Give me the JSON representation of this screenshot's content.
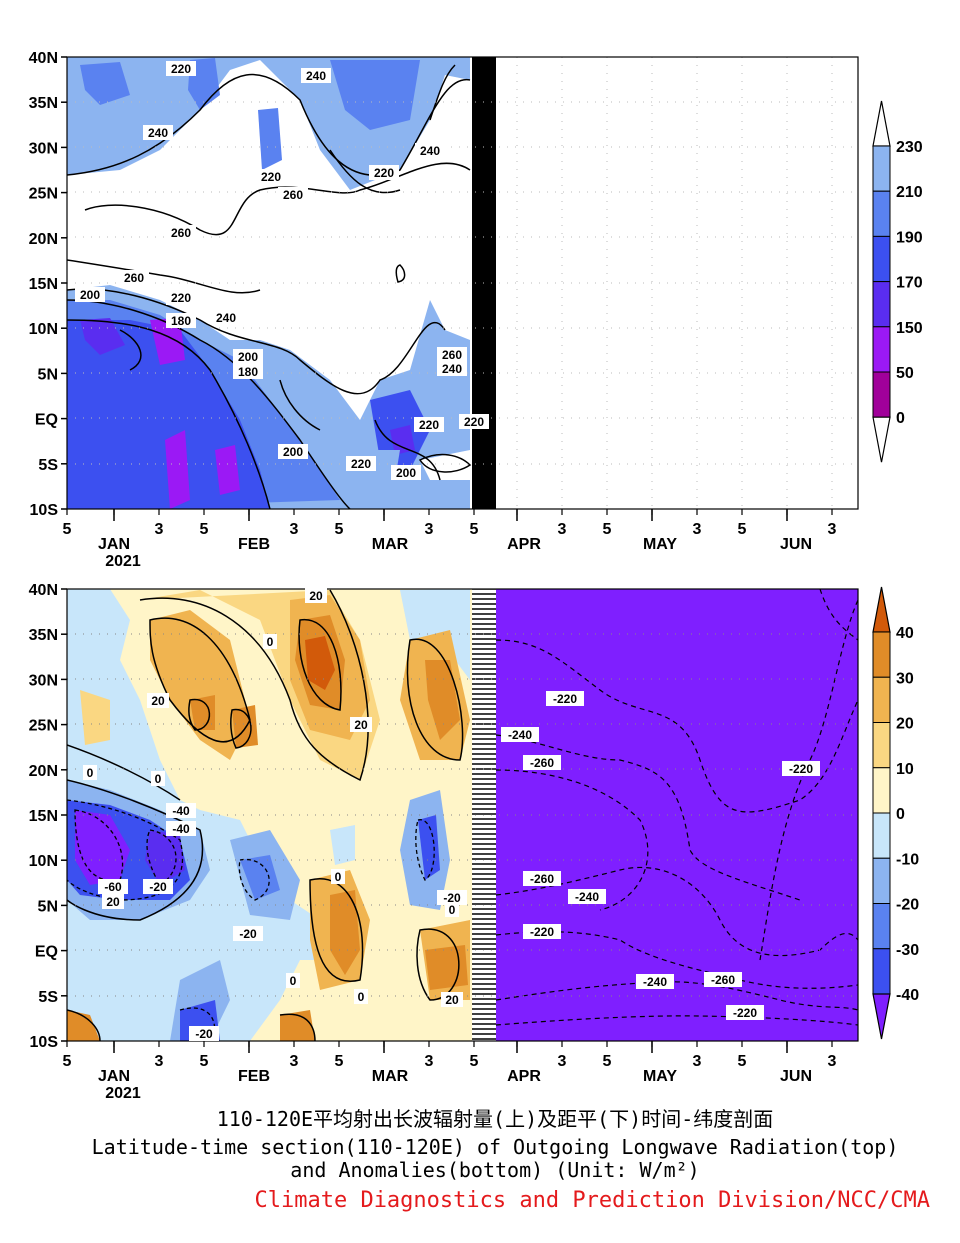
{
  "caption": {
    "line1": "110-120E平均射出长波辐射量(上)及距平(下)时间-纬度剖面",
    "line2": "Latitude-time section(110-120E) of Outgoing Longwave Radiation(top)",
    "line3": "and Anomalies(bottom) (Unit: W/m²)",
    "credit": "Climate Diagnostics and Prediction Division/NCC/CMA"
  },
  "chart_data": [
    {
      "type": "heatmap",
      "title": "",
      "xlabel": "",
      "ylabel": "",
      "y_ticks": [
        "40N",
        "35N",
        "30N",
        "25N",
        "20N",
        "15N",
        "10N",
        "5N",
        "EQ",
        "5S",
        "10S"
      ],
      "x_day_ticks": [
        "5",
        "3",
        "5",
        "3",
        "5",
        "3",
        "5",
        "3",
        "5",
        "3",
        "5",
        "3",
        "5",
        "3"
      ],
      "x_month_ticks": [
        "JAN",
        "FEB",
        "MAR",
        "APR",
        "MAY",
        "JUN"
      ],
      "x_year_label": "2021",
      "data_end_month_fraction": 0.29,
      "colorbar": {
        "levels": [
          "0",
          "50",
          "150",
          "170",
          "190",
          "210",
          "230"
        ],
        "colors": [
          "#6b005f",
          "#a0009a",
          "#9b19f5",
          "#5a2df0",
          "#3c50f0",
          "#5a82f0",
          "#8cb4f0",
          "#c8dcf8",
          "#ffffff"
        ]
      },
      "contour_labels": [
        "220",
        "240",
        "240",
        "220",
        "240",
        "220",
        "260",
        "260",
        "260",
        "200",
        "220",
        "180",
        "240",
        "200",
        "180",
        "200",
        "220",
        "200",
        "220",
        "220",
        "260",
        "240"
      ],
      "grid": true
    },
    {
      "type": "heatmap",
      "title": "",
      "xlabel": "",
      "ylabel": "",
      "y_ticks": [
        "40N",
        "35N",
        "30N",
        "25N",
        "20N",
        "15N",
        "10N",
        "5N",
        "EQ",
        "5S",
        "10S"
      ],
      "x_day_ticks": [
        "5",
        "3",
        "5",
        "3",
        "5",
        "3",
        "5",
        "3",
        "5",
        "3",
        "5",
        "3",
        "5",
        "3"
      ],
      "x_month_ticks": [
        "JAN",
        "FEB",
        "MAR",
        "APR",
        "MAY",
        "JUN"
      ],
      "x_year_label": "2021",
      "colorbar": {
        "levels": [
          "40",
          "30",
          "20",
          "10",
          "0",
          "-10",
          "-20",
          "-30",
          "-40"
        ],
        "colors": [
          "#d25a0a",
          "#e08c28",
          "#f0b450",
          "#fad782",
          "#fff5c8",
          "#c8e6fa",
          "#8cb4f0",
          "#5a82f0",
          "#3c50f0",
          "#7f1fff"
        ]
      },
      "contour_labels": [
        "20",
        "0",
        "20",
        "20",
        "0",
        "0",
        "0",
        "-20",
        "-40",
        "-40",
        "-60",
        "-20",
        "0",
        "-20",
        "0",
        "0",
        "20",
        "20",
        "-20",
        "-220",
        "-240",
        "-260",
        "-260",
        "-240",
        "-220",
        "-220",
        "-240",
        "-260",
        "-220"
      ],
      "grid": true
    }
  ]
}
